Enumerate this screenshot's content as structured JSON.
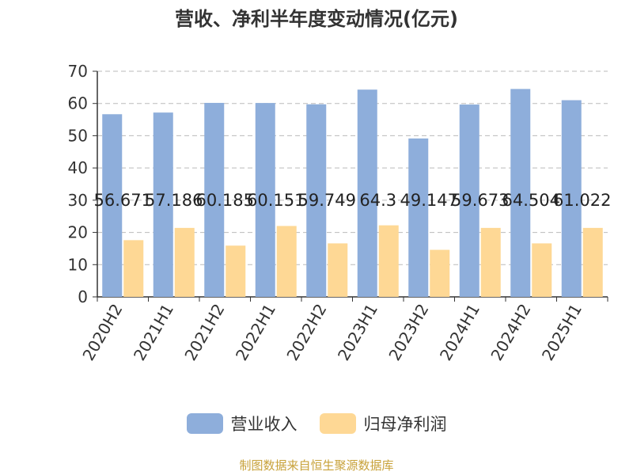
{
  "chart_data": {
    "type": "bar",
    "title": "营收、净利半年度变动情况(亿元)",
    "categories": [
      "2020H2",
      "2021H1",
      "2021H2",
      "2022H1",
      "2022H2",
      "2023H1",
      "2023H2",
      "2024H1",
      "2024H2",
      "2025H1"
    ],
    "series": [
      {
        "name": "营业收入",
        "color": "#8eaedb",
        "values": [
          56.671,
          57.186,
          60.185,
          60.151,
          59.749,
          64.3,
          49.147,
          59.673,
          64.504,
          61.022
        ],
        "labels": [
          "56.671",
          "57.186",
          "60.185",
          "60.151",
          "59.749",
          "64.3",
          "49.147",
          "59.673",
          "64.504",
          "61.022"
        ]
      },
      {
        "name": "归母净利润",
        "color": "#fed895",
        "values": [
          17.6,
          21.4,
          15.9,
          22.0,
          16.6,
          22.2,
          14.6,
          21.4,
          16.6,
          21.4
        ]
      }
    ],
    "ylim": [
      0,
      70
    ],
    "yticks": [
      0,
      10,
      20,
      30,
      40,
      50,
      60,
      70
    ],
    "grid": true,
    "legend_position": "bottom"
  },
  "source_note": "制图数据来自恒生聚源数据库"
}
